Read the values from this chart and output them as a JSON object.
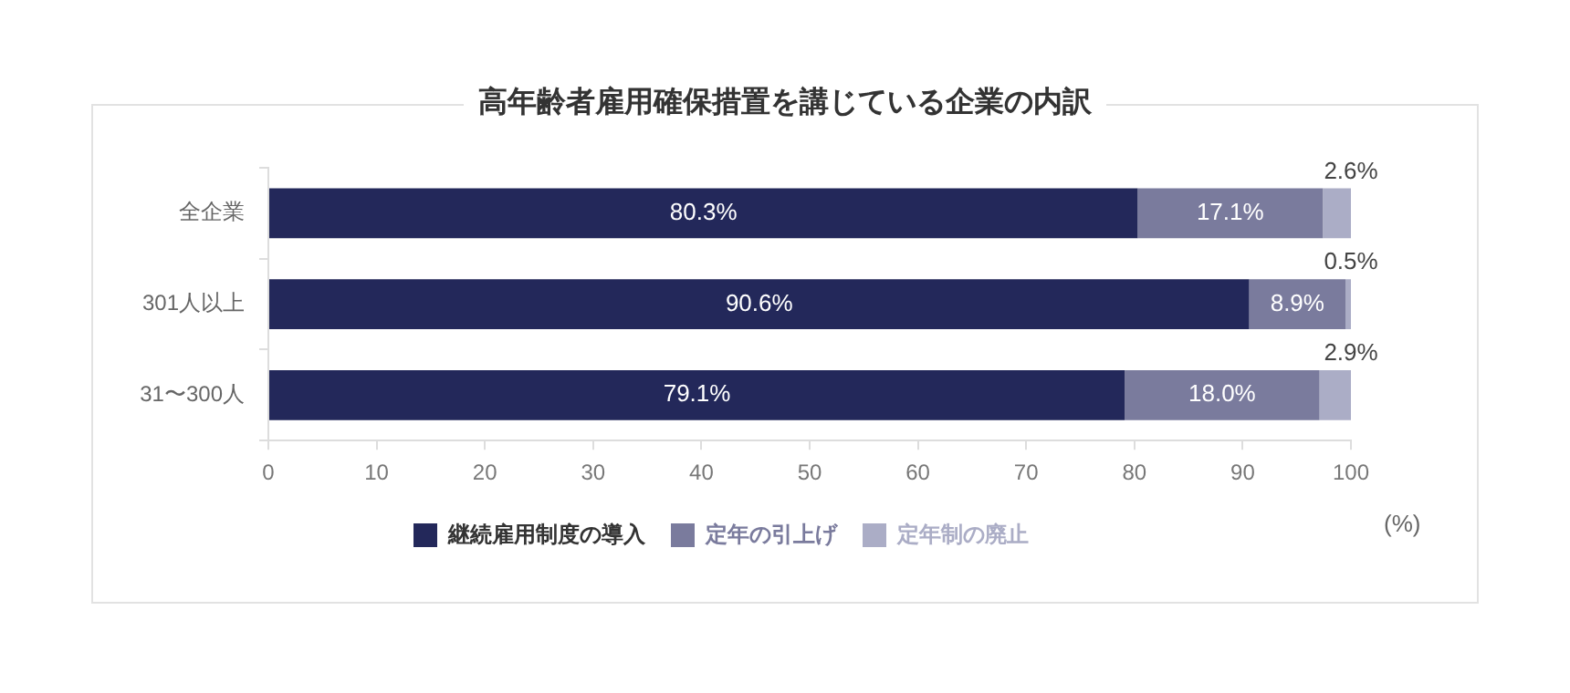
{
  "chart_data": {
    "type": "bar",
    "orientation": "horizontal",
    "stacked": true,
    "title": "高年齢者雇用確保措置を講じている企業の内訳",
    "xlabel": "(%)",
    "categories": [
      "全企業",
      "301人以上",
      "31〜300人"
    ],
    "series": [
      {
        "name": "継続雇用制度の導入",
        "color": "#23285a",
        "values": [
          80.3,
          90.6,
          79.1
        ],
        "value_labels": [
          "80.3%",
          "90.6%",
          "79.1%"
        ]
      },
      {
        "name": "定年の引上げ",
        "color": "#7a7b9d",
        "values": [
          17.1,
          8.9,
          18.0
        ],
        "value_labels": [
          "17.1%",
          "8.9%",
          "18.0%"
        ]
      },
      {
        "name": "定年制の廃止",
        "color": "#abadc6",
        "values": [
          2.6,
          0.5,
          2.9
        ],
        "value_labels": [
          "2.6%",
          "0.5%",
          "2.9%"
        ]
      }
    ],
    "xlim": [
      0,
      100
    ],
    "xticks": [
      0,
      10,
      20,
      30,
      40,
      50,
      60,
      70,
      80,
      90,
      100
    ],
    "grid": false,
    "legend": "bottom"
  }
}
